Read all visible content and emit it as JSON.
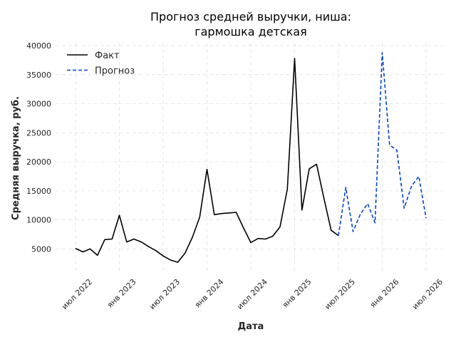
{
  "chart_data": {
    "type": "line",
    "title_lines": [
      "Прогноз средней выручки, ниша:",
      "гармошка детская"
    ],
    "xlabel": "Дата",
    "ylabel": "Средняя выручка, руб.",
    "x_ticks": [
      "июл 2022",
      "янв 2023",
      "июл 2023",
      "янв 2024",
      "июл 2024",
      "янв 2025",
      "июл 2025",
      "янв 2026",
      "июл 2026"
    ],
    "y_ticks": [
      5000,
      10000,
      15000,
      20000,
      25000,
      30000,
      35000,
      40000
    ],
    "ylim": [
      1000,
      40500
    ],
    "grid": true,
    "legend_position": "top-left",
    "series": [
      {
        "name": "Факт",
        "color": "#000000",
        "style": "solid",
        "x": [
          "2022-07",
          "2022-08",
          "2022-09",
          "2022-10",
          "2022-11",
          "2022-12",
          "2023-01",
          "2023-02",
          "2023-03",
          "2023-04",
          "2023-05",
          "2023-06",
          "2023-07",
          "2023-08",
          "2023-09",
          "2023-10",
          "2023-11",
          "2023-12",
          "2024-01",
          "2024-02",
          "2024-03",
          "2024-04",
          "2024-05",
          "2024-06",
          "2024-07",
          "2024-08",
          "2024-09",
          "2024-10",
          "2024-11",
          "2024-12",
          "2025-01",
          "2025-02",
          "2025-03",
          "2025-04",
          "2025-05",
          "2025-06",
          "2025-07"
        ],
        "values": [
          5100,
          4500,
          5000,
          3900,
          6600,
          6700,
          10800,
          6200,
          6700,
          6200,
          5400,
          4700,
          3800,
          3100,
          2700,
          4300,
          7000,
          10500,
          18700,
          10900,
          11100,
          11200,
          11300,
          8600,
          6100,
          6800,
          6700,
          7200,
          8800,
          15300,
          37800,
          11700,
          18800,
          19600,
          13800,
          8200,
          7300
        ]
      },
      {
        "name": "Прогноз",
        "color": "#0044cc",
        "style": "dashed",
        "x": [
          "2025-07",
          "2025-08",
          "2025-09",
          "2025-10",
          "2025-11",
          "2025-12",
          "2026-01",
          "2026-02",
          "2026-03",
          "2026-04",
          "2026-05",
          "2026-06",
          "2026-07"
        ],
        "values": [
          7300,
          15600,
          8000,
          11000,
          12800,
          9500,
          38800,
          22900,
          22000,
          12000,
          15800,
          17500,
          10300
        ]
      }
    ]
  }
}
